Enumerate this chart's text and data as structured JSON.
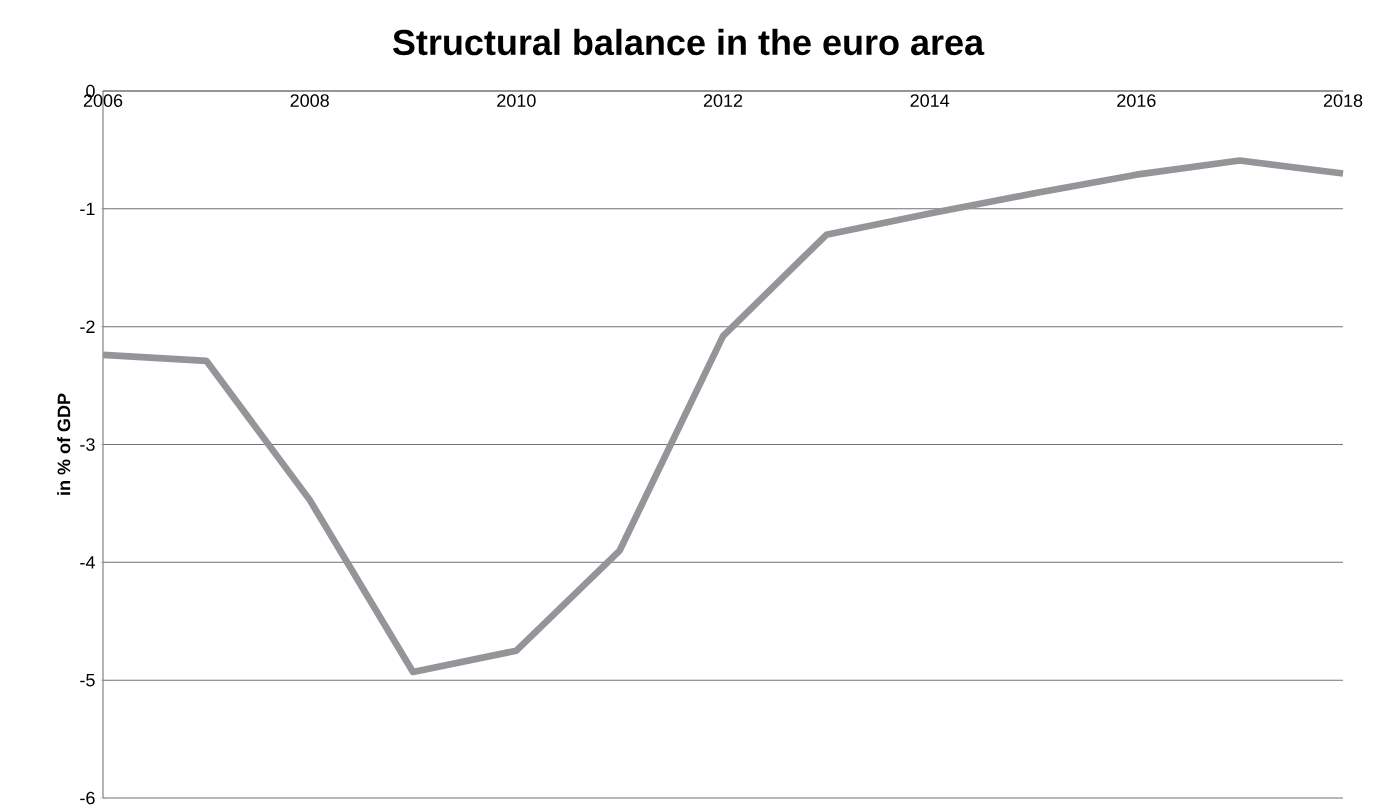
{
  "chart_data": {
    "type": "line",
    "title": "Structural balance in the euro area",
    "ylabel": "in % of GDP",
    "x": [
      2006,
      2007,
      2008,
      2009,
      2010,
      2011,
      2012,
      2013,
      2014,
      2015,
      2016,
      2017,
      2018
    ],
    "series": [
      {
        "color": "#939598",
        "values": [
          -2.24,
          -2.29,
          -3.47,
          -4.93,
          -4.75,
          -3.9,
          -2.08,
          -1.22,
          -1.04,
          -0.87,
          -0.71,
          -0.59,
          -0.7
        ]
      }
    ],
    "xlim": [
      2006,
      2018
    ],
    "xticks": [
      2006,
      2008,
      2010,
      2012,
      2014,
      2016,
      2018
    ],
    "ylim": [
      -6,
      0
    ],
    "yticks": [
      -6,
      -5,
      -4,
      -3,
      -2,
      -1,
      0
    ],
    "grid": "y",
    "marker": "none",
    "line_style": "solid"
  }
}
